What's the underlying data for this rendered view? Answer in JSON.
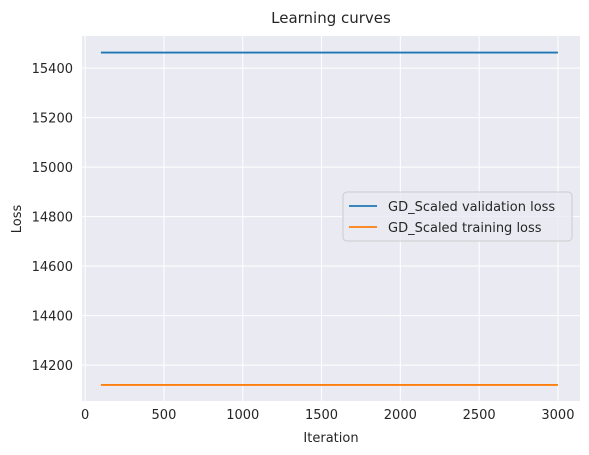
{
  "chart_data": {
    "type": "line",
    "title": "Learning curves",
    "xlabel": "Iteration",
    "ylabel": "Loss",
    "xlim": [
      -20,
      3140
    ],
    "ylim": [
      14055,
      15530
    ],
    "xticks": [
      0,
      500,
      1000,
      1500,
      2000,
      2500,
      3000
    ],
    "yticks": [
      14200,
      14400,
      14600,
      14800,
      15000,
      15200,
      15400
    ],
    "grid": true,
    "legend_position": "center-right",
    "series": [
      {
        "name": "GD_Scaled validation loss",
        "color": "#1f77b4",
        "x": [
          100,
          500,
          1000,
          1500,
          2000,
          2500,
          3000
        ],
        "y": [
          15463,
          15463,
          15463,
          15463,
          15463,
          15463,
          15463
        ]
      },
      {
        "name": "GD_Scaled training loss",
        "color": "#ff7f0e",
        "x": [
          100,
          500,
          1000,
          1500,
          2000,
          2500,
          3000
        ],
        "y": [
          14120,
          14120,
          14120,
          14120,
          14120,
          14120,
          14120
        ]
      }
    ]
  },
  "colors": {
    "plot_background": "#eaeaf2",
    "grid": "#ffffff"
  }
}
